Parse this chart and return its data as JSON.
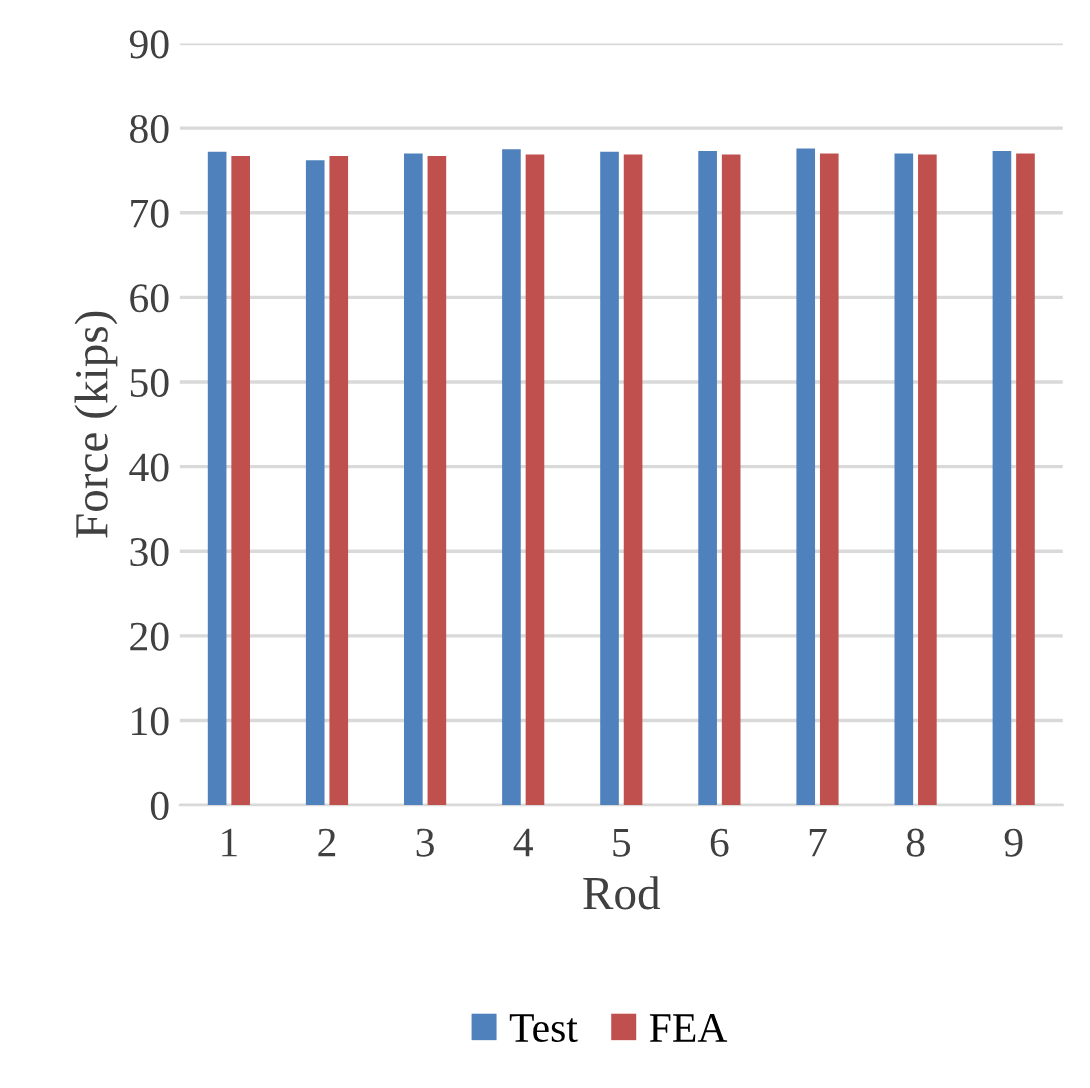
{
  "chart_data": {
    "type": "bar",
    "xlabel": "Rod",
    "ylabel": "Force (kips)",
    "categories": [
      "1",
      "2",
      "3",
      "4",
      "5",
      "6",
      "7",
      "8",
      "9"
    ],
    "series": [
      {
        "name": "Test",
        "color": "#4f81bd",
        "values": [
          77.2,
          76.2,
          77.0,
          77.5,
          77.2,
          77.3,
          77.6,
          77.0,
          77.3
        ]
      },
      {
        "name": "FEA",
        "color": "#c0504d",
        "values": [
          76.7,
          76.7,
          76.7,
          76.9,
          76.9,
          76.9,
          77.0,
          76.9,
          77.0
        ]
      }
    ],
    "ylim": [
      0,
      90
    ],
    "yticks": [
      0,
      10,
      20,
      30,
      40,
      50,
      60,
      70,
      80,
      90
    ],
    "grid": "y",
    "legend": "bottom"
  }
}
